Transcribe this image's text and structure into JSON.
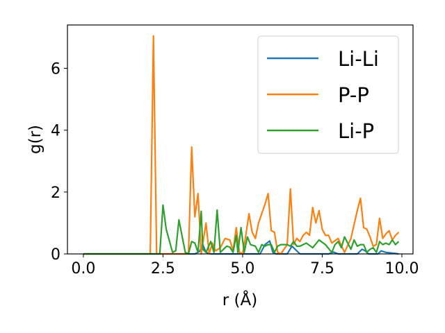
{
  "chart_data": {
    "type": "line",
    "title": "",
    "xlabel": "r (Å)",
    "ylabel": "g(r)",
    "xlim": [
      -0.5,
      10.35
    ],
    "ylim": [
      0,
      7.4
    ],
    "xticks": [
      0.0,
      2.5,
      5.0,
      7.5,
      10.0
    ],
    "xtick_labels": [
      "0.0",
      "2.5",
      "5.0",
      "7.5",
      "10.0"
    ],
    "yticks": [
      0,
      2,
      4,
      6
    ],
    "ytick_labels": [
      "0",
      "2",
      "4",
      "6"
    ],
    "grid": false,
    "legend_position": "top-right",
    "series": [
      {
        "name": "Li-Li",
        "color": "#1f77b4",
        "x": [
          0.0,
          3.5,
          3.65,
          3.75,
          3.85,
          4.0,
          5.55,
          5.7,
          5.85,
          5.95,
          6.05,
          6.4,
          6.55,
          6.65,
          6.8,
          7.7,
          7.85,
          8.0,
          8.1,
          8.6,
          8.75,
          8.85,
          8.95,
          9.25,
          9.35,
          9.5,
          9.9
        ],
        "values": [
          0,
          0,
          0.08,
          0.3,
          0.05,
          0,
          0,
          0.3,
          0.42,
          0.05,
          0,
          0,
          0.25,
          0.15,
          0,
          0,
          0.06,
          0,
          0,
          0,
          0.15,
          0.1,
          0,
          0,
          0.1,
          0.05,
          0
        ]
      },
      {
        "name": "P-P",
        "color": "#ff7f0e",
        "x": [
          0.0,
          2.1,
          2.2,
          2.3,
          3.3,
          3.4,
          3.5,
          3.6,
          3.7,
          3.85,
          3.95,
          4.05,
          4.15,
          4.3,
          4.45,
          4.6,
          4.7,
          4.8,
          4.9,
          5.0,
          5.1,
          5.2,
          5.3,
          5.4,
          5.5,
          5.6,
          5.7,
          5.8,
          5.9,
          6.0,
          6.1,
          6.2,
          6.4,
          6.5,
          6.6,
          6.7,
          6.8,
          6.9,
          7.0,
          7.1,
          7.2,
          7.3,
          7.4,
          7.5,
          7.6,
          7.7,
          7.8,
          8.0,
          8.2,
          8.4,
          8.6,
          8.7,
          8.8,
          8.9,
          9.0,
          9.1,
          9.2,
          9.3,
          9.4,
          9.5,
          9.6,
          9.7,
          9.8,
          9.9
        ],
        "values": [
          0,
          0,
          7.05,
          0,
          0,
          3.45,
          1.2,
          1.95,
          0,
          1.0,
          0,
          0.35,
          0.1,
          0.2,
          0.5,
          0.45,
          0.1,
          0.85,
          0.05,
          0,
          0.6,
          1.3,
          0.7,
          0.5,
          1.0,
          1.3,
          1.6,
          1.95,
          0.75,
          0.7,
          0.05,
          0,
          0.3,
          2.1,
          0.3,
          0.5,
          0.4,
          0.6,
          0.7,
          0.6,
          1.5,
          1.0,
          1.4,
          0.8,
          0.6,
          0.6,
          0.35,
          0.5,
          0.05,
          0.5,
          1.4,
          1.8,
          0.85,
          0.8,
          0.55,
          0.25,
          0.3,
          1.15,
          0.5,
          0.65,
          0.75,
          0.45,
          0.6,
          0.7
        ]
      },
      {
        "name": "Li-P",
        "color": "#2ca02c",
        "x": [
          0.0,
          2.4,
          2.5,
          2.6,
          2.8,
          2.9,
          3.0,
          3.2,
          3.3,
          3.4,
          3.5,
          3.6,
          3.7,
          3.75,
          3.85,
          4.0,
          4.1,
          4.2,
          4.3,
          4.5,
          4.6,
          4.7,
          4.8,
          4.85,
          4.95,
          5.05,
          5.15,
          5.25,
          5.4,
          5.5,
          5.6,
          5.7,
          5.8,
          5.9,
          6.0,
          6.1,
          6.2,
          6.3,
          6.4,
          6.5,
          6.6,
          6.7,
          6.8,
          6.9,
          7.0,
          7.2,
          7.4,
          7.6,
          7.8,
          7.9,
          8.0,
          8.1,
          8.2,
          8.4,
          8.5,
          8.6,
          8.7,
          8.8,
          8.9,
          9.0,
          9.1,
          9.2,
          9.3,
          9.4,
          9.5,
          9.6,
          9.7,
          9.8,
          9.9
        ],
        "values": [
          0,
          0,
          1.58,
          0.8,
          0.05,
          0.1,
          1.1,
          0.05,
          0,
          0.4,
          0.35,
          0.05,
          1.38,
          0.15,
          0.05,
          0.4,
          0.05,
          1.42,
          0.05,
          0.25,
          0.22,
          0.05,
          0.6,
          0.05,
          0.85,
          0.05,
          0.55,
          0.3,
          0.25,
          0.05,
          0.3,
          0.25,
          0.3,
          0.3,
          0.05,
          0.25,
          0.3,
          0.3,
          0.3,
          0.25,
          0.4,
          0.25,
          0.25,
          0.3,
          0.35,
          0.2,
          0.45,
          0.3,
          0.05,
          0.3,
          0.4,
          0.2,
          0.55,
          0.15,
          0.45,
          0.25,
          0.3,
          0.3,
          0.05,
          0.15,
          0.2,
          0.05,
          0.4,
          0.3,
          0.35,
          0.3,
          0.45,
          0.3,
          0.4
        ]
      }
    ]
  }
}
